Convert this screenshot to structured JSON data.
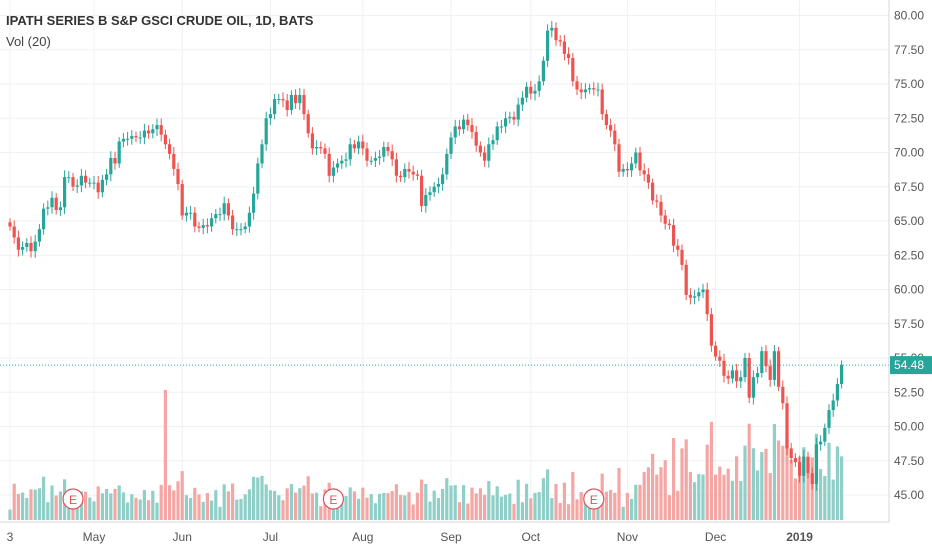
{
  "header": {
    "symbol_line": "IPATH SERIES B S&P GSCI CRUDE OIL, 1D, BATS",
    "volume_indicator": "Vol (20)"
  },
  "colors": {
    "up": "#26a69a",
    "down": "#ef5350",
    "up_volume": "#8fcfc7",
    "down_volume": "#f4a6a4",
    "grid": "#eef0f3",
    "price_line": "#26a69a",
    "earnings_marker": "#e0505a"
  },
  "chart_data": {
    "type": "candlestick",
    "interval": "1D",
    "last_price": 54.48,
    "ylim": [
      43.0,
      81.0
    ],
    "y_ticks": [
      "80.00",
      "77.50",
      "75.00",
      "72.50",
      "70.00",
      "67.50",
      "65.00",
      "62.50",
      "60.00",
      "57.50",
      "55.00",
      "52.50",
      "50.00",
      "47.50",
      "45.00"
    ],
    "x_ticks": [
      {
        "label": "3",
        "index": 0
      },
      {
        "label": "May",
        "index": 20
      },
      {
        "label": "Jun",
        "index": 41
      },
      {
        "label": "Jul",
        "index": 62
      },
      {
        "label": "Aug",
        "index": 84
      },
      {
        "label": "Sep",
        "index": 105
      },
      {
        "label": "Oct",
        "index": 124
      },
      {
        "label": "Nov",
        "index": 147
      },
      {
        "label": "Dec",
        "index": 168
      },
      {
        "label": "2019",
        "index": 188
      }
    ],
    "earnings_markers": [
      {
        "label": "E",
        "index": 15
      },
      {
        "label": "E",
        "index": 77
      },
      {
        "label": "E",
        "index": 139
      }
    ],
    "closes": [
      64.6,
      63.8,
      62.9,
      63.1,
      63.4,
      62.8,
      63.5,
      64.4,
      65.9,
      66.0,
      66.7,
      65.8,
      66.0,
      68.2,
      68.2,
      67.5,
      67.6,
      68.3,
      67.8,
      67.8,
      67.8,
      67.1,
      68.0,
      68.4,
      69.6,
      69.2,
      70.8,
      71.0,
      71.0,
      71.2,
      71.1,
      71.1,
      71.6,
      71.4,
      71.7,
      72.0,
      71.3,
      70.6,
      69.9,
      68.8,
      67.7,
      65.4,
      65.6,
      65.6,
      64.6,
      64.5,
      64.7,
      64.6,
      65.2,
      65.5,
      65.5,
      66.3,
      65.4,
      64.4,
      64.4,
      64.4,
      64.6,
      65.6,
      67.0,
      69.2,
      70.6,
      72.5,
      72.8,
      73.9,
      73.9,
      73.8,
      73.1,
      74.2,
      73.6,
      74.2,
      72.8,
      71.4,
      70.3,
      70.4,
      70.3,
      69.9,
      68.3,
      68.9,
      69.2,
      69.4,
      69.5,
      70.6,
      70.3,
      70.8,
      70.3,
      69.4,
      69.4,
      69.6,
      69.7,
      70.4,
      70.1,
      69.5,
      68.3,
      68.2,
      68.8,
      68.6,
      68.4,
      68.3,
      66.1,
      66.9,
      67.1,
      67.5,
      67.7,
      68.4,
      69.9,
      71.1,
      71.9,
      71.7,
      72.4,
      72.0,
      71.5,
      70.5,
      70.0,
      69.4,
      70.6,
      70.9,
      71.9,
      71.9,
      72.5,
      72.6,
      72.4,
      73.5,
      74.0,
      74.8,
      74.3,
      74.5,
      75.2,
      76.7,
      78.9,
      79.1,
      78.2,
      78.1,
      77.2,
      76.9,
      75.2,
      74.6,
      74.4,
      74.6,
      74.7,
      74.6,
      74.6,
      72.8,
      72.0,
      71.6,
      70.6,
      68.6,
      68.8,
      68.7,
      69.2,
      70.0,
      68.7,
      68.4,
      67.8,
      66.5,
      66.4,
      65.4,
      64.8,
      64.7,
      63.2,
      62.9,
      61.8,
      59.6,
      59.4,
      59.5,
      59.8,
      60.0,
      58.2,
      55.9,
      55.1,
      54.8,
      53.7,
      53.5,
      54.1,
      53.3,
      53.6,
      55.0,
      52.1,
      53.6,
      53.9,
      55.5,
      54.4,
      53.4,
      55.5,
      52.9,
      51.7,
      48.4,
      47.7,
      47.4,
      46.4,
      47.8,
      46.6,
      45.8,
      48.7,
      48.9,
      49.9,
      51.2,
      51.9,
      53.1,
      54.5
    ]
  }
}
